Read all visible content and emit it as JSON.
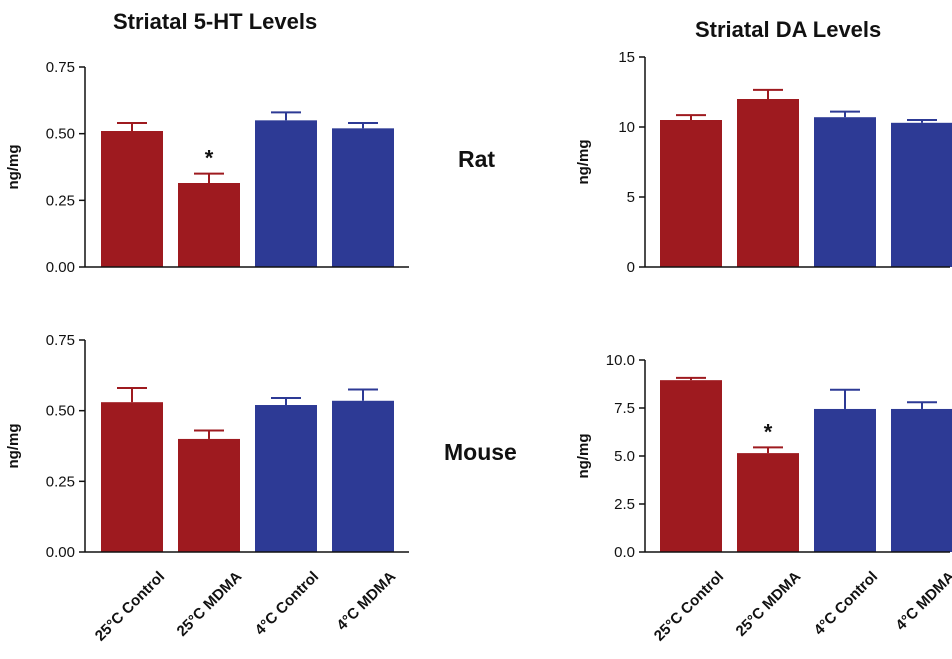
{
  "colors": {
    "red": "#9e1a1f",
    "blue": "#2d3a95",
    "axis": "#111111"
  },
  "column_titles": {
    "left": "Striatal 5-HT Levels",
    "right": "Striatal DA Levels"
  },
  "row_labels": {
    "top": "Rat",
    "bottom": "Mouse"
  },
  "chart_data": [
    {
      "type": "bar",
      "title": "Striatal 5-HT Levels",
      "row": "Rat",
      "categories": [
        "25°C Control",
        "25°C MDMA",
        "4°C Control",
        "4°C MDMA"
      ],
      "values": [
        0.51,
        0.315,
        0.55,
        0.52
      ],
      "errors": [
        0.03,
        0.035,
        0.03,
        0.02
      ],
      "bar_colors": [
        "#9e1a1f",
        "#9e1a1f",
        "#2d3a95",
        "#2d3a95"
      ],
      "significant": [
        false,
        true,
        false,
        false
      ],
      "significance_marker": "*",
      "ylabel": "ng/mg",
      "ylim": [
        0,
        0.75
      ],
      "yticks": [
        "0.00",
        "0.25",
        "0.50",
        "0.75"
      ],
      "show_xticklabels": false,
      "grid": false
    },
    {
      "type": "bar",
      "title": "Striatal DA Levels",
      "row": "Rat",
      "categories": [
        "25°C Control",
        "25°C MDMA",
        "4°C Control",
        "4°C MDMA"
      ],
      "values": [
        10.5,
        12.0,
        10.7,
        10.3
      ],
      "errors": [
        0.35,
        0.65,
        0.4,
        0.2
      ],
      "bar_colors": [
        "#9e1a1f",
        "#9e1a1f",
        "#2d3a95",
        "#2d3a95"
      ],
      "significant": [
        false,
        false,
        false,
        false
      ],
      "significance_marker": "*",
      "ylabel": "ng/mg",
      "ylim": [
        0,
        15
      ],
      "yticks": [
        "0",
        "5",
        "10",
        "15"
      ],
      "show_xticklabels": false,
      "grid": false
    },
    {
      "type": "bar",
      "title": "Striatal 5-HT Levels",
      "row": "Mouse",
      "categories": [
        "25°C Control",
        "25°C MDMA",
        "4°C Control",
        "4°C MDMA"
      ],
      "values": [
        0.53,
        0.4,
        0.52,
        0.535
      ],
      "errors": [
        0.05,
        0.03,
        0.025,
        0.04
      ],
      "bar_colors": [
        "#9e1a1f",
        "#9e1a1f",
        "#2d3a95",
        "#2d3a95"
      ],
      "significant": [
        false,
        false,
        false,
        false
      ],
      "significance_marker": "*",
      "ylabel": "ng/mg",
      "ylim": [
        0,
        0.75
      ],
      "yticks": [
        "0.00",
        "0.25",
        "0.50",
        "0.75"
      ],
      "show_xticklabels": true,
      "grid": false
    },
    {
      "type": "bar",
      "title": "Striatal DA Levels",
      "row": "Mouse",
      "categories": [
        "25°C Control",
        "25°C MDMA",
        "4°C Control",
        "4°C MDMA"
      ],
      "values": [
        8.95,
        5.15,
        7.45,
        7.45
      ],
      "errors": [
        0.12,
        0.3,
        1.0,
        0.35
      ],
      "bar_colors": [
        "#9e1a1f",
        "#9e1a1f",
        "#2d3a95",
        "#2d3a95"
      ],
      "significant": [
        false,
        true,
        false,
        false
      ],
      "significance_marker": "*",
      "ylabel": "ng/mg",
      "ylim": [
        0,
        10
      ],
      "yticks": [
        "0.0",
        "2.5",
        "5.0",
        "7.5",
        "10.0"
      ],
      "show_xticklabels": true,
      "grid": false
    }
  ]
}
